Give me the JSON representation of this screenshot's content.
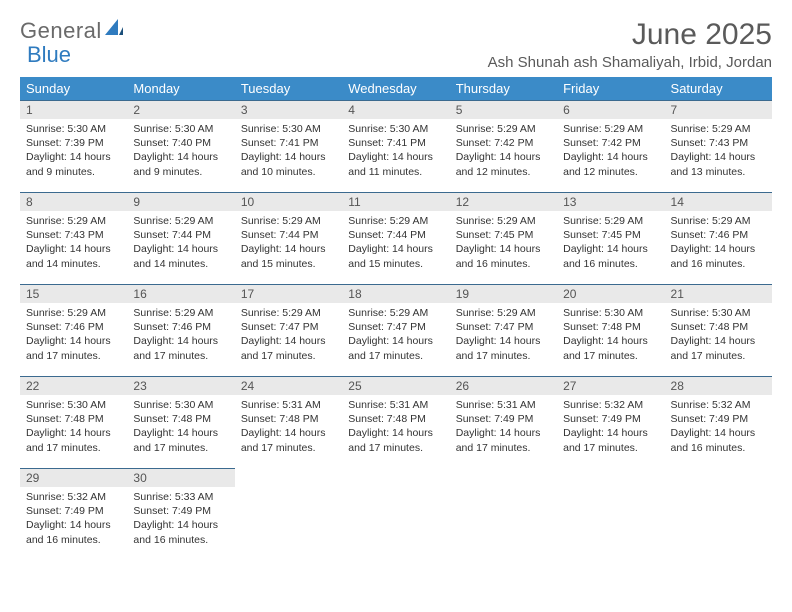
{
  "logo": {
    "part1": "General",
    "part2": "Blue"
  },
  "title": "June 2025",
  "location": "Ash Shunah ash Shamaliyah, Irbid, Jordan",
  "colors": {
    "header_bg": "#3b8bc8",
    "header_text": "#ffffff",
    "day_num_bg": "#e9e9e9",
    "row_border": "#3b6a8f",
    "logo_accent": "#2f7bbf",
    "text": "#333333"
  },
  "weekdays": [
    "Sunday",
    "Monday",
    "Tuesday",
    "Wednesday",
    "Thursday",
    "Friday",
    "Saturday"
  ],
  "days": [
    {
      "n": "1",
      "sr": "5:30 AM",
      "ss": "7:39 PM",
      "dl": "14 hours and 9 minutes."
    },
    {
      "n": "2",
      "sr": "5:30 AM",
      "ss": "7:40 PM",
      "dl": "14 hours and 9 minutes."
    },
    {
      "n": "3",
      "sr": "5:30 AM",
      "ss": "7:41 PM",
      "dl": "14 hours and 10 minutes."
    },
    {
      "n": "4",
      "sr": "5:30 AM",
      "ss": "7:41 PM",
      "dl": "14 hours and 11 minutes."
    },
    {
      "n": "5",
      "sr": "5:29 AM",
      "ss": "7:42 PM",
      "dl": "14 hours and 12 minutes."
    },
    {
      "n": "6",
      "sr": "5:29 AM",
      "ss": "7:42 PM",
      "dl": "14 hours and 12 minutes."
    },
    {
      "n": "7",
      "sr": "5:29 AM",
      "ss": "7:43 PM",
      "dl": "14 hours and 13 minutes."
    },
    {
      "n": "8",
      "sr": "5:29 AM",
      "ss": "7:43 PM",
      "dl": "14 hours and 14 minutes."
    },
    {
      "n": "9",
      "sr": "5:29 AM",
      "ss": "7:44 PM",
      "dl": "14 hours and 14 minutes."
    },
    {
      "n": "10",
      "sr": "5:29 AM",
      "ss": "7:44 PM",
      "dl": "14 hours and 15 minutes."
    },
    {
      "n": "11",
      "sr": "5:29 AM",
      "ss": "7:44 PM",
      "dl": "14 hours and 15 minutes."
    },
    {
      "n": "12",
      "sr": "5:29 AM",
      "ss": "7:45 PM",
      "dl": "14 hours and 16 minutes."
    },
    {
      "n": "13",
      "sr": "5:29 AM",
      "ss": "7:45 PM",
      "dl": "14 hours and 16 minutes."
    },
    {
      "n": "14",
      "sr": "5:29 AM",
      "ss": "7:46 PM",
      "dl": "14 hours and 16 minutes."
    },
    {
      "n": "15",
      "sr": "5:29 AM",
      "ss": "7:46 PM",
      "dl": "14 hours and 17 minutes."
    },
    {
      "n": "16",
      "sr": "5:29 AM",
      "ss": "7:46 PM",
      "dl": "14 hours and 17 minutes."
    },
    {
      "n": "17",
      "sr": "5:29 AM",
      "ss": "7:47 PM",
      "dl": "14 hours and 17 minutes."
    },
    {
      "n": "18",
      "sr": "5:29 AM",
      "ss": "7:47 PM",
      "dl": "14 hours and 17 minutes."
    },
    {
      "n": "19",
      "sr": "5:29 AM",
      "ss": "7:47 PM",
      "dl": "14 hours and 17 minutes."
    },
    {
      "n": "20",
      "sr": "5:30 AM",
      "ss": "7:48 PM",
      "dl": "14 hours and 17 minutes."
    },
    {
      "n": "21",
      "sr": "5:30 AM",
      "ss": "7:48 PM",
      "dl": "14 hours and 17 minutes."
    },
    {
      "n": "22",
      "sr": "5:30 AM",
      "ss": "7:48 PM",
      "dl": "14 hours and 17 minutes."
    },
    {
      "n": "23",
      "sr": "5:30 AM",
      "ss": "7:48 PM",
      "dl": "14 hours and 17 minutes."
    },
    {
      "n": "24",
      "sr": "5:31 AM",
      "ss": "7:48 PM",
      "dl": "14 hours and 17 minutes."
    },
    {
      "n": "25",
      "sr": "5:31 AM",
      "ss": "7:48 PM",
      "dl": "14 hours and 17 minutes."
    },
    {
      "n": "26",
      "sr": "5:31 AM",
      "ss": "7:49 PM",
      "dl": "14 hours and 17 minutes."
    },
    {
      "n": "27",
      "sr": "5:32 AM",
      "ss": "7:49 PM",
      "dl": "14 hours and 17 minutes."
    },
    {
      "n": "28",
      "sr": "5:32 AM",
      "ss": "7:49 PM",
      "dl": "14 hours and 16 minutes."
    },
    {
      "n": "29",
      "sr": "5:32 AM",
      "ss": "7:49 PM",
      "dl": "14 hours and 16 minutes."
    },
    {
      "n": "30",
      "sr": "5:33 AM",
      "ss": "7:49 PM",
      "dl": "14 hours and 16 minutes."
    }
  ],
  "labels": {
    "sunrise": "Sunrise: ",
    "sunset": "Sunset: ",
    "daylight": "Daylight: "
  }
}
